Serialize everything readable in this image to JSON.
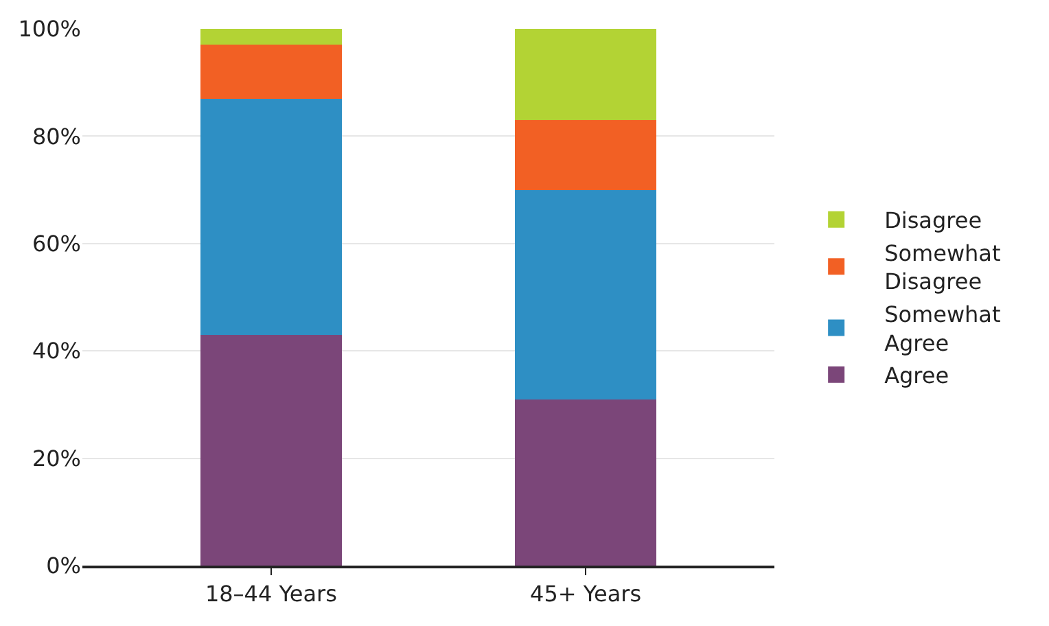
{
  "chart_data": {
    "type": "bar",
    "stacked": true,
    "categories": [
      "18–44 Years",
      "45+ Years"
    ],
    "series": [
      {
        "name": "Agree",
        "color": "#7b4679",
        "values": [
          43,
          31
        ]
      },
      {
        "name": "Somewhat Agree",
        "color": "#2e8fc4",
        "values": [
          44,
          39
        ]
      },
      {
        "name": "Somewhat Disagree",
        "color": "#f26024",
        "values": [
          10,
          13
        ]
      },
      {
        "name": "Disagree",
        "color": "#b3d334",
        "values": [
          3,
          17
        ]
      }
    ],
    "ylim": [
      0,
      100
    ],
    "yticks": [
      {
        "value": 0,
        "label": "0%"
      },
      {
        "value": 20,
        "label": "20%"
      },
      {
        "value": 40,
        "label": "40%"
      },
      {
        "value": 60,
        "label": "60%"
      },
      {
        "value": 80,
        "label": "80%"
      },
      {
        "value": 100,
        "label": "100%"
      }
    ],
    "grid": "y",
    "legend": "right"
  }
}
